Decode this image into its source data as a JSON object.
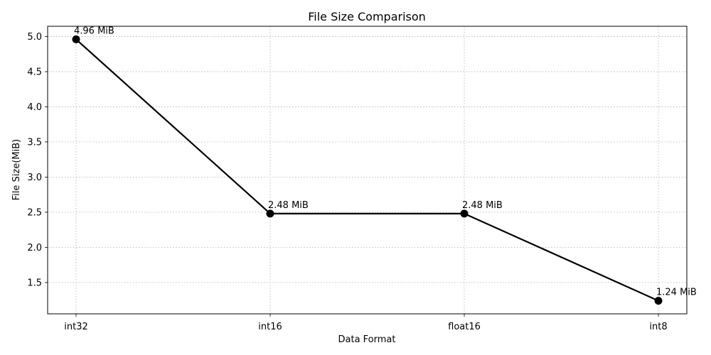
{
  "chart_data": {
    "type": "line",
    "title": "File Size Comparison",
    "xlabel": "Data Format",
    "ylabel": "File Size(MiB)",
    "categories": [
      "int32",
      "int16",
      "float16",
      "int8"
    ],
    "values": [
      4.96,
      2.48,
      2.48,
      1.24
    ],
    "data_labels": [
      "4.96 MiB",
      "2.48 MiB",
      "2.48 MiB",
      "1.24 MiB"
    ],
    "yticks": [
      1.5,
      2.0,
      2.5,
      3.0,
      3.5,
      4.0,
      4.5,
      5.0
    ],
    "ytick_labels": [
      "1.5",
      "2.0",
      "2.5",
      "3.0",
      "3.5",
      "4.0",
      "4.5",
      "5.0"
    ],
    "ylim": [
      1.054,
      5.146
    ],
    "grid": true,
    "line_color": "#000000",
    "marker_color": "#000000",
    "grid_color": "#b0b0b0"
  }
}
